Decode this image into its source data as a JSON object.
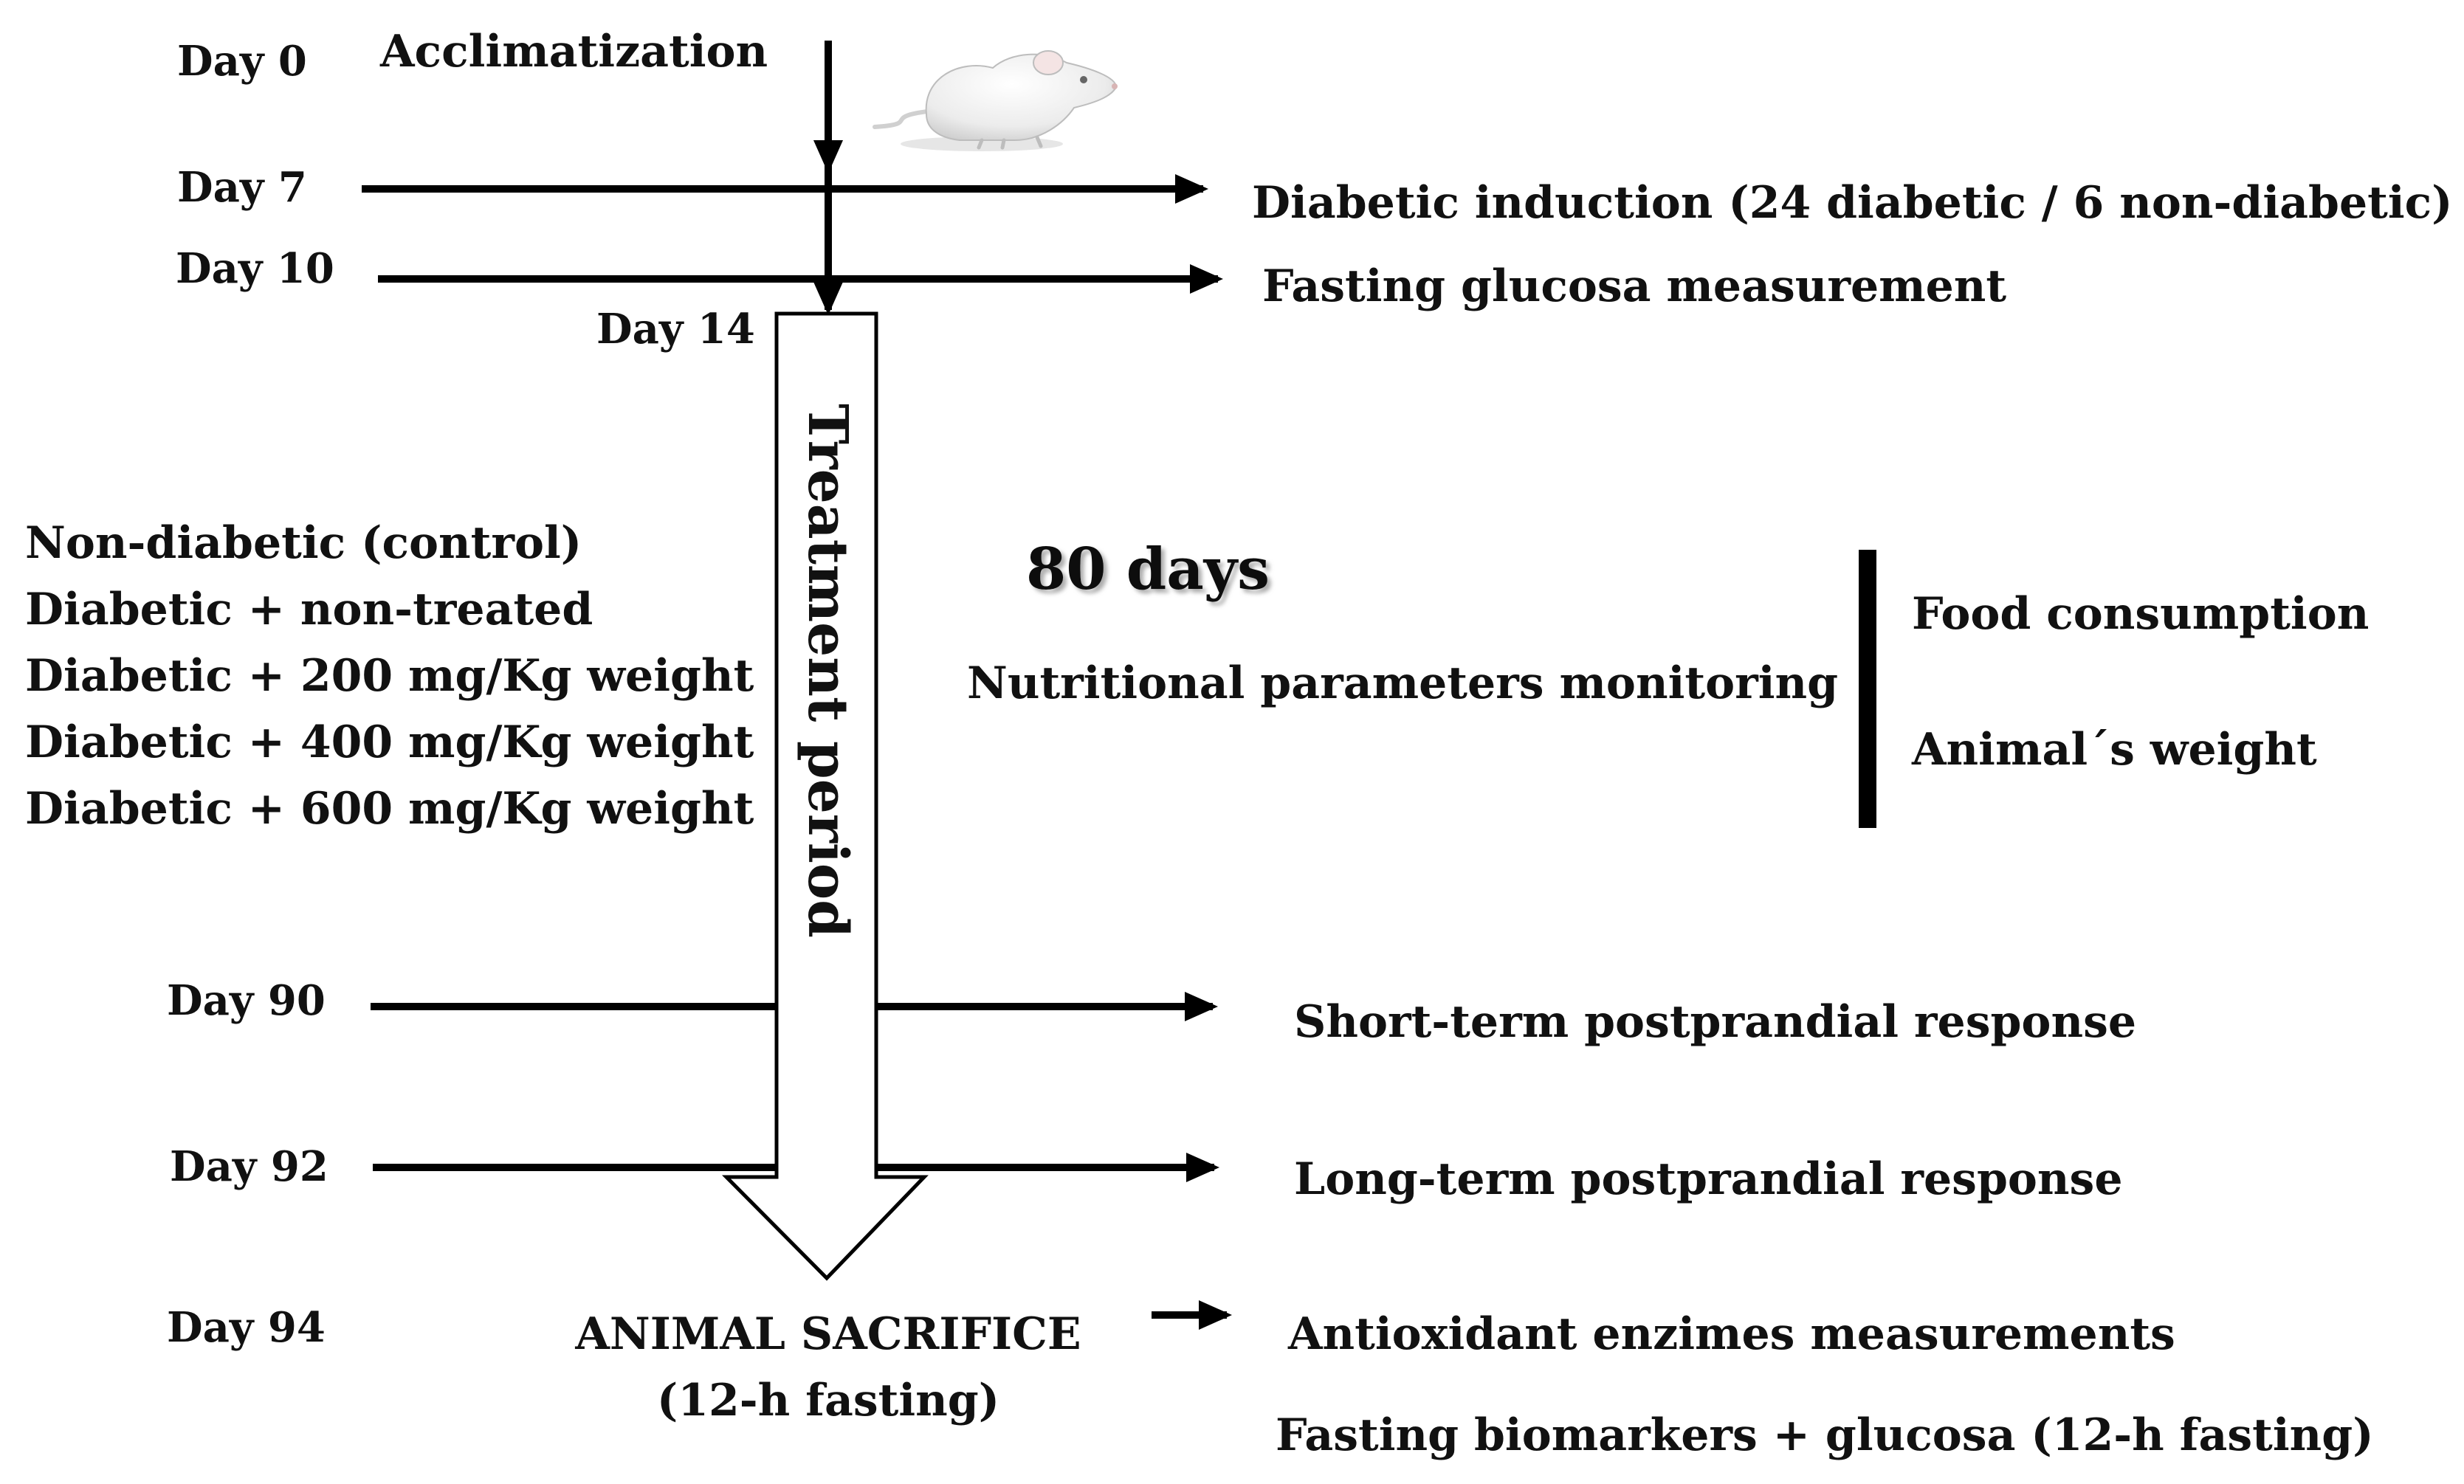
{
  "timeline": {
    "day0": {
      "day": "Day 0",
      "event": "Acclimatization"
    },
    "day7": {
      "day": "Day 7",
      "event": "Diabetic induction (24 diabetic / 6 non-diabetic)"
    },
    "day10": {
      "day": "Day 10",
      "event": "Fasting glucosa measurement"
    },
    "day14": {
      "day": "Day 14"
    },
    "day90": {
      "day": "Day 90",
      "event": "Short-term postprandial response"
    },
    "day92": {
      "day": "Day 92",
      "event": "Long-term postprandial response"
    },
    "day94": {
      "day": "Day 94",
      "event_line1": "ANIMAL SACRIFICE",
      "event_line2": "(12-h fasting)",
      "outcomes": [
        "Antioxidant enzimes measurements",
        "Fasting biomarkers + glucosa (12-h fasting)"
      ]
    }
  },
  "treatment": {
    "label": "Treatment period",
    "duration": "80 days",
    "groups": [
      "Non-diabetic (control)",
      "Diabetic + non-treated",
      "Diabetic + 200 mg/Kg weight",
      "Diabetic + 400 mg/Kg weight",
      "Diabetic + 600 mg/Kg weight"
    ]
  },
  "monitoring": {
    "label": "Nutritional parameters monitoring",
    "items": [
      "Food consumption",
      "Animal´s weight"
    ]
  },
  "illustration": {
    "icon": "rat-icon"
  }
}
